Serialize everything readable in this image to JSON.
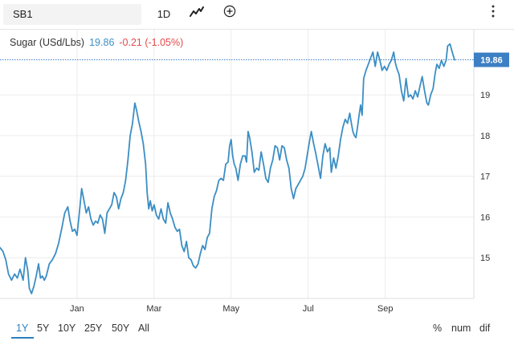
{
  "toolbar": {
    "symbol": "SB1",
    "interval": "1D",
    "chart_type_icon": "line-chart-icon",
    "add_icon": "plus-circle-icon",
    "more_icon": "vertical-ellipsis-icon"
  },
  "legend": {
    "name": "Sugar (USd/Lbs)",
    "last": "19.86",
    "change": "-0.21 (-1.05%)"
  },
  "ranges": [
    "1Y",
    "5Y",
    "10Y",
    "25Y",
    "50Y",
    "All"
  ],
  "active_range": "1Y",
  "scale_modes": [
    "%",
    "num",
    "dif"
  ],
  "colors": {
    "line": "#3b8ec4",
    "last_price_label": "#3d7fc4",
    "change_negative": "#e34a4a",
    "grid": "#ececec"
  },
  "chart_data": {
    "type": "line",
    "title": "",
    "xlabel": "",
    "ylabel": "",
    "ylim": [
      14.0,
      20.6
    ],
    "y_ticks": [
      15,
      16,
      17,
      18,
      19
    ],
    "x_range": [
      -1.0,
      11.3
    ],
    "x_ticks": [
      {
        "label": "Jan",
        "x": 1
      },
      {
        "label": "Mar",
        "x": 3
      },
      {
        "label": "May",
        "x": 5
      },
      {
        "label": "Jul",
        "x": 7
      },
      {
        "label": "Sep",
        "x": 9
      }
    ],
    "last_value": 19.86,
    "last_value_label": "19.86",
    "series": [
      {
        "points": [
          [
            -1.0,
            15.25
          ],
          [
            -0.92,
            15.15
          ],
          [
            -0.85,
            14.95
          ],
          [
            -0.78,
            14.6
          ],
          [
            -0.7,
            14.45
          ],
          [
            -0.62,
            14.6
          ],
          [
            -0.55,
            14.5
          ],
          [
            -0.48,
            14.72
          ],
          [
            -0.4,
            14.45
          ],
          [
            -0.34,
            15.0
          ],
          [
            -0.28,
            14.7
          ],
          [
            -0.24,
            14.25
          ],
          [
            -0.18,
            14.12
          ],
          [
            -0.12,
            14.3
          ],
          [
            -0.06,
            14.55
          ],
          [
            0.0,
            14.85
          ],
          [
            0.05,
            14.5
          ],
          [
            0.1,
            14.55
          ],
          [
            0.15,
            14.45
          ],
          [
            0.2,
            14.55
          ],
          [
            0.28,
            14.85
          ],
          [
            0.36,
            14.95
          ],
          [
            0.44,
            15.1
          ],
          [
            0.52,
            15.35
          ],
          [
            0.6,
            15.7
          ],
          [
            0.68,
            16.1
          ],
          [
            0.76,
            16.25
          ],
          [
            0.82,
            15.9
          ],
          [
            0.88,
            15.65
          ],
          [
            0.94,
            15.7
          ],
          [
            1.0,
            15.55
          ],
          [
            1.06,
            16.1
          ],
          [
            1.12,
            16.7
          ],
          [
            1.18,
            16.4
          ],
          [
            1.24,
            16.1
          ],
          [
            1.3,
            16.25
          ],
          [
            1.36,
            15.95
          ],
          [
            1.42,
            15.8
          ],
          [
            1.48,
            15.9
          ],
          [
            1.54,
            15.85
          ],
          [
            1.6,
            16.05
          ],
          [
            1.66,
            15.95
          ],
          [
            1.72,
            15.6
          ],
          [
            1.78,
            16.1
          ],
          [
            1.84,
            16.2
          ],
          [
            1.9,
            16.3
          ],
          [
            1.96,
            16.6
          ],
          [
            2.02,
            16.5
          ],
          [
            2.08,
            16.2
          ],
          [
            2.14,
            16.45
          ],
          [
            2.2,
            16.6
          ],
          [
            2.26,
            16.9
          ],
          [
            2.32,
            17.4
          ],
          [
            2.38,
            18.0
          ],
          [
            2.44,
            18.3
          ],
          [
            2.5,
            18.8
          ],
          [
            2.55,
            18.6
          ],
          [
            2.6,
            18.35
          ],
          [
            2.66,
            18.1
          ],
          [
            2.72,
            17.8
          ],
          [
            2.78,
            17.3
          ],
          [
            2.82,
            16.6
          ],
          [
            2.86,
            16.2
          ],
          [
            2.9,
            16.4
          ],
          [
            2.95,
            16.15
          ],
          [
            3.0,
            16.3
          ],
          [
            3.06,
            16.05
          ],
          [
            3.12,
            15.95
          ],
          [
            3.18,
            16.2
          ],
          [
            3.24,
            15.95
          ],
          [
            3.3,
            15.85
          ],
          [
            3.36,
            16.35
          ],
          [
            3.42,
            16.1
          ],
          [
            3.48,
            15.95
          ],
          [
            3.54,
            15.75
          ],
          [
            3.6,
            15.65
          ],
          [
            3.66,
            15.7
          ],
          [
            3.72,
            15.3
          ],
          [
            3.78,
            15.15
          ],
          [
            3.84,
            15.4
          ],
          [
            3.9,
            15.0
          ],
          [
            3.96,
            14.95
          ],
          [
            4.02,
            14.8
          ],
          [
            4.08,
            14.75
          ],
          [
            4.14,
            14.85
          ],
          [
            4.2,
            15.1
          ],
          [
            4.26,
            15.3
          ],
          [
            4.32,
            15.2
          ],
          [
            4.38,
            15.5
          ],
          [
            4.44,
            15.6
          ],
          [
            4.5,
            16.2
          ],
          [
            4.56,
            16.5
          ],
          [
            4.62,
            16.65
          ],
          [
            4.68,
            16.9
          ],
          [
            4.74,
            16.95
          ],
          [
            4.8,
            16.9
          ],
          [
            4.86,
            17.3
          ],
          [
            4.92,
            17.35
          ],
          [
            4.96,
            17.75
          ],
          [
            5.0,
            17.9
          ],
          [
            5.04,
            17.5
          ],
          [
            5.08,
            17.3
          ],
          [
            5.12,
            17.2
          ],
          [
            5.18,
            16.9
          ],
          [
            5.24,
            17.3
          ],
          [
            5.3,
            17.5
          ],
          [
            5.36,
            17.5
          ],
          [
            5.4,
            17.35
          ],
          [
            5.44,
            18.1
          ],
          [
            5.48,
            17.95
          ],
          [
            5.54,
            17.6
          ],
          [
            5.6,
            17.1
          ],
          [
            5.66,
            17.2
          ],
          [
            5.72,
            17.15
          ],
          [
            5.78,
            17.6
          ],
          [
            5.84,
            17.3
          ],
          [
            5.9,
            16.95
          ],
          [
            5.96,
            16.85
          ],
          [
            6.02,
            17.2
          ],
          [
            6.08,
            17.4
          ],
          [
            6.14,
            17.75
          ],
          [
            6.2,
            17.7
          ],
          [
            6.26,
            17.4
          ],
          [
            6.32,
            17.75
          ],
          [
            6.38,
            17.7
          ],
          [
            6.44,
            17.4
          ],
          [
            6.5,
            17.2
          ],
          [
            6.56,
            16.7
          ],
          [
            6.62,
            16.45
          ],
          [
            6.68,
            16.7
          ],
          [
            6.74,
            16.8
          ],
          [
            6.8,
            16.9
          ],
          [
            6.86,
            17.0
          ],
          [
            6.92,
            17.2
          ],
          [
            6.98,
            17.55
          ],
          [
            7.04,
            17.9
          ],
          [
            7.08,
            18.1
          ],
          [
            7.14,
            17.8
          ],
          [
            7.2,
            17.55
          ],
          [
            7.26,
            17.25
          ],
          [
            7.32,
            16.95
          ],
          [
            7.38,
            17.5
          ],
          [
            7.44,
            17.8
          ],
          [
            7.5,
            17.6
          ],
          [
            7.56,
            17.7
          ],
          [
            7.6,
            17.1
          ],
          [
            7.66,
            17.45
          ],
          [
            7.72,
            17.2
          ],
          [
            7.78,
            17.5
          ],
          [
            7.84,
            17.9
          ],
          [
            7.9,
            18.2
          ],
          [
            7.96,
            18.4
          ],
          [
            8.02,
            18.3
          ],
          [
            8.08,
            18.55
          ],
          [
            8.12,
            18.3
          ],
          [
            8.16,
            18.1
          ],
          [
            8.2,
            18.0
          ],
          [
            8.24,
            17.95
          ],
          [
            8.28,
            18.2
          ],
          [
            8.32,
            18.5
          ],
          [
            8.36,
            18.75
          ],
          [
            8.4,
            18.5
          ],
          [
            8.44,
            19.4
          ],
          [
            8.5,
            19.6
          ],
          [
            8.56,
            19.75
          ],
          [
            8.62,
            19.9
          ],
          [
            8.68,
            20.05
          ],
          [
            8.74,
            19.7
          ],
          [
            8.8,
            20.05
          ],
          [
            8.86,
            19.85
          ],
          [
            8.92,
            19.6
          ],
          [
            8.98,
            19.7
          ],
          [
            9.04,
            19.6
          ],
          [
            9.1,
            19.75
          ],
          [
            9.16,
            19.85
          ],
          [
            9.22,
            20.05
          ],
          [
            9.26,
            19.8
          ],
          [
            9.3,
            19.65
          ],
          [
            9.36,
            19.5
          ],
          [
            9.42,
            19.1
          ],
          [
            9.48,
            18.85
          ],
          [
            9.54,
            19.4
          ],
          [
            9.6,
            18.95
          ],
          [
            9.66,
            19.0
          ],
          [
            9.72,
            18.9
          ],
          [
            9.78,
            19.1
          ],
          [
            9.84,
            18.95
          ],
          [
            9.9,
            19.2
          ],
          [
            9.96,
            19.45
          ],
          [
            10.02,
            19.1
          ],
          [
            10.08,
            18.8
          ],
          [
            10.12,
            18.75
          ],
          [
            10.18,
            19.0
          ],
          [
            10.24,
            19.15
          ],
          [
            10.3,
            19.55
          ],
          [
            10.34,
            19.75
          ],
          [
            10.4,
            19.65
          ],
          [
            10.46,
            19.85
          ],
          [
            10.52,
            19.7
          ],
          [
            10.58,
            19.85
          ],
          [
            10.62,
            20.2
          ],
          [
            10.68,
            20.25
          ],
          [
            10.74,
            20.05
          ],
          [
            10.8,
            19.86
          ]
        ]
      }
    ]
  }
}
